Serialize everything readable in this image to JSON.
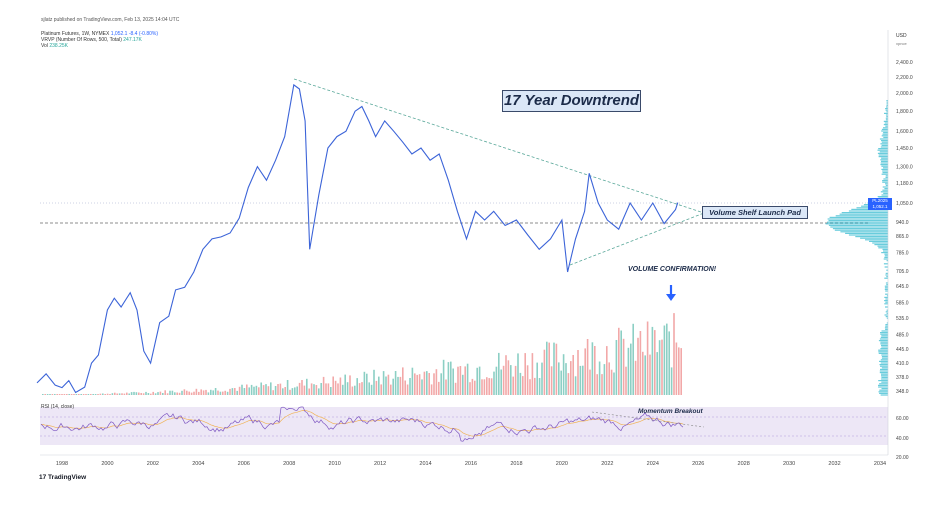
{
  "header": {
    "published": "sjlatz published on TradingView.com, Feb 13, 2025 14:04 UTC",
    "symbol_line": "Platinum Futures, 1W, NYMEX",
    "symbol_values": "1,052.1  -8.4 (-0.80%)",
    "vrvp_line": "VRVP (Number Of Rows, 500, Total)",
    "vrvp_value": "247.17K",
    "vol_line": "Vol",
    "vol_value": "238.25K"
  },
  "annotations": {
    "title": "17 Year Downtrend",
    "launch_pad": "Volume Shelf Launch Pad",
    "volume_confirmation": "VOLUME CONFIRMATION!",
    "momentum": "Momentum Breakout"
  },
  "rsi_label": "RSI (14, close)",
  "price_axis": {
    "currency": "USD",
    "sub": "xpnce"
  },
  "price_tag": {
    "symbol": "PL2025",
    "value": "1,052.1",
    "time": "1d 9h"
  },
  "footer": {
    "brand": "TradingView"
  },
  "colors": {
    "price_line": "#3c64d8",
    "trend_line": "#5aa89a",
    "dashed_line": "#6a6a6a",
    "vol_up": "#8ccfc4",
    "vol_down": "#f2a8a8",
    "vrvp": "#4fc3d6",
    "rsi_line": "#7e57c2",
    "rsi_ma": "#f0b45a",
    "rsi_bg": "#ede7f6"
  },
  "chart_data": {
    "type": "line",
    "title": "17 Year Downtrend",
    "x_ticks": [
      "1998",
      "2000",
      "2002",
      "2004",
      "2006",
      "2008",
      "2010",
      "2012",
      "2014",
      "2016",
      "2018",
      "2020",
      "2022",
      "2024",
      "2026",
      "2028",
      "2030",
      "2032",
      "2034"
    ],
    "y_ticks": [
      "2,400.0",
      "2,200.0",
      "2,000.0",
      "1,800.0",
      "1,600.0",
      "1,450.0",
      "1,300.0",
      "1,180.0",
      "1,050.0",
      "940.0",
      "865.0",
      "785.0",
      "705.0",
      "645.0",
      "585.0",
      "535.0",
      "485.0",
      "445.0",
      "410.0",
      "378.0",
      "348.0"
    ],
    "rsi_ticks": [
      "60.00",
      "40.00",
      "20.00"
    ],
    "series": [
      {
        "x": [
          1996.9,
          1997.3,
          1997.7,
          1998.0,
          1998.3,
          1998.6,
          1999.0,
          1999.3,
          1999.6,
          2000.0,
          2000.3,
          2000.6,
          2001.0,
          2001.3,
          2001.6,
          2001.9,
          2002.3,
          2002.7,
          2003.0,
          2003.4,
          2003.8,
          2004.2,
          2004.6,
          2005.0,
          2005.4,
          2005.8,
          2006.2,
          2006.6,
          2007.0,
          2007.4,
          2007.8,
          2008.2,
          2008.45,
          2008.7,
          2008.9,
          2009.3,
          2009.7,
          2010.1,
          2010.5,
          2010.9,
          2011.2,
          2011.5,
          2011.8,
          2012.2,
          2012.6,
          2013.0,
          2013.4,
          2013.8,
          2014.2,
          2014.6,
          2015.0,
          2015.4,
          2015.8,
          2016.2,
          2016.6,
          2017.0,
          2017.5,
          2018.0,
          2018.5,
          2019.0,
          2019.5,
          2020.0,
          2020.25,
          2020.6,
          2021.0,
          2021.2,
          2021.6,
          2022.0,
          2022.5,
          2023.0,
          2023.5,
          2024.0,
          2024.5,
          2025.0,
          2025.1
        ],
        "values": [
          365,
          385,
          360,
          355,
          370,
          345,
          356,
          410,
          430,
          560,
          600,
          570,
          620,
          560,
          440,
          410,
          520,
          540,
          630,
          640,
          700,
          800,
          850,
          860,
          880,
          960,
          1150,
          1300,
          1200,
          1350,
          1550,
          2100,
          2050,
          1700,
          800,
          1100,
          1450,
          1550,
          1600,
          1800,
          1850,
          1700,
          1550,
          1700,
          1600,
          1500,
          1400,
          1450,
          1350,
          1400,
          1200,
          1000,
          850,
          1000,
          950,
          1000,
          920,
          950,
          870,
          800,
          850,
          950,
          700,
          850,
          1000,
          1250,
          1050,
          950,
          900,
          1050,
          950,
          1050,
          930,
          1010,
          1052.1
        ]
      }
    ],
    "ylabel": "USD",
    "xlim": [
      1997,
      2034
    ],
    "ylim": [
      340,
      2450
    ],
    "grid": false,
    "log_scale": true
  }
}
